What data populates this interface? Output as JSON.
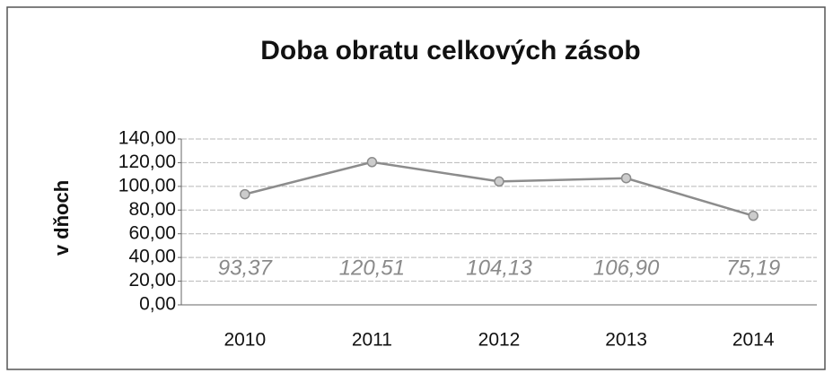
{
  "chart_data": {
    "type": "line",
    "title": "Doba obratu celkových zásob",
    "y_label": "v dňoch",
    "categories": [
      "2010",
      "2011",
      "2012",
      "2013",
      "2014"
    ],
    "series": [
      {
        "name": "Doba obratu celkových zásob",
        "color": "#8c8c8c",
        "values": [
          93.37,
          120.51,
          104.13,
          106.9,
          75.19
        ],
        "value_labels": [
          "93,37",
          "120,51",
          "104,13",
          "106,90",
          "75,19"
        ]
      }
    ],
    "ylim": [
      0,
      140
    ],
    "yticks": [
      {
        "value": 0,
        "label": "0,00"
      },
      {
        "value": 20,
        "label": "20,00"
      },
      {
        "value": 40,
        "label": "40,00"
      },
      {
        "value": 60,
        "label": "60,00"
      },
      {
        "value": 80,
        "label": "80,00"
      },
      {
        "value": 100,
        "label": "100,00"
      },
      {
        "value": 120,
        "label": "120,00"
      },
      {
        "value": 140,
        "label": "140,00"
      }
    ],
    "grid": true
  }
}
